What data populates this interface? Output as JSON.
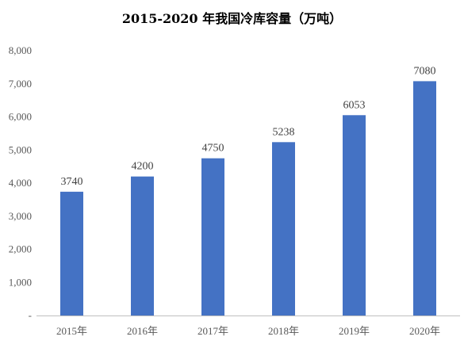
{
  "chart_data": {
    "type": "bar",
    "title": "2015-2020 年我国冷库容量（万吨）",
    "categories": [
      "2015年",
      "2016年",
      "2017年",
      "2018年",
      "2019年",
      "2020年"
    ],
    "series": [
      {
        "values": [
          3740,
          4200,
          4750,
          5238,
          6053,
          7080
        ]
      }
    ],
    "data_labels": [
      "3740",
      "4200",
      "4750",
      "5238",
      "6053",
      "7080"
    ],
    "y_ticks": [
      "-",
      "1,000",
      "2,000",
      "3,000",
      "4,000",
      "5,000",
      "6,000",
      "7,000",
      "8,000"
    ],
    "ylim": [
      0,
      8000
    ],
    "bar_color": "#4472C4",
    "axis_color": "#BFBFBF",
    "grid": false,
    "legend": "none"
  }
}
